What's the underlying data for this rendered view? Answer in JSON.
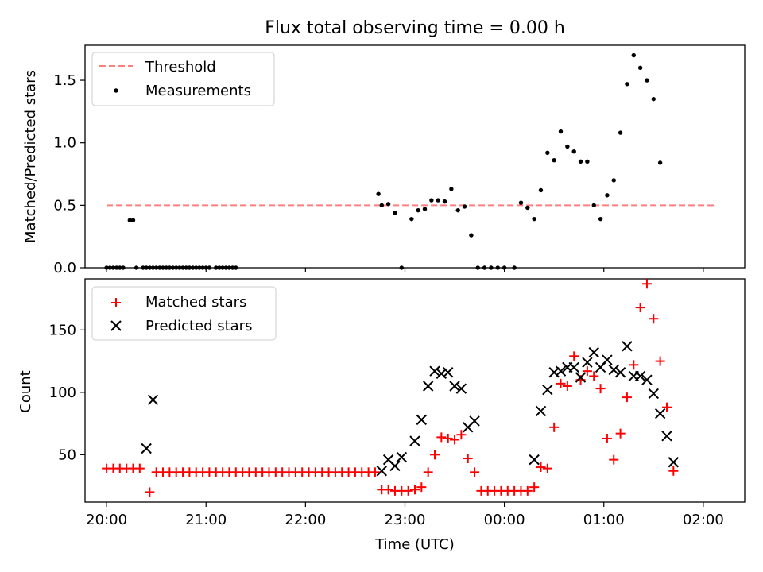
{
  "chart_data": [
    {
      "type": "scatter",
      "title": "Flux total observing time = 0.00 h",
      "xlabel": "",
      "ylabel": "Matched/Predicted stars",
      "ylim": [
        0,
        1.78
      ],
      "yticks": [
        0.0,
        0.5,
        1.0,
        1.5
      ],
      "ytick_labels": [
        "0.0",
        "0.5",
        "1.0",
        "1.5"
      ],
      "xlim_hours_utc": [
        "19:47",
        "02:25"
      ],
      "xticks": [
        "20:00",
        "21:00",
        "22:00",
        "23:00",
        "00:00",
        "01:00",
        "02:00"
      ],
      "x_tick_labels_visible": false,
      "legend": {
        "position": "top-left",
        "entries": [
          "Threshold",
          "Measurements"
        ]
      },
      "threshold": {
        "name": "Threshold",
        "value": 0.5,
        "x_start": "20:00",
        "x_end": "02:08",
        "color": "#ff7f7f",
        "style": "dashed"
      },
      "series": [
        {
          "name": "Measurements",
          "color": "#000000",
          "marker": "dot",
          "points": [
            [
              "20:00",
              0
            ],
            [
              "20:02",
              0
            ],
            [
              "20:04",
              0
            ],
            [
              "20:06",
              0
            ],
            [
              "20:08",
              0
            ],
            [
              "20:10",
              0
            ],
            [
              "20:14",
              0.38
            ],
            [
              "20:16",
              0.38
            ],
            [
              "20:18",
              0
            ],
            [
              "20:22",
              0
            ],
            [
              "20:24",
              0
            ],
            [
              "20:26",
              0
            ],
            [
              "20:28",
              0
            ],
            [
              "20:30",
              0
            ],
            [
              "20:32",
              0
            ],
            [
              "20:34",
              0
            ],
            [
              "20:36",
              0
            ],
            [
              "20:38",
              0
            ],
            [
              "20:40",
              0
            ],
            [
              "20:42",
              0
            ],
            [
              "20:44",
              0
            ],
            [
              "20:46",
              0
            ],
            [
              "20:48",
              0
            ],
            [
              "20:50",
              0
            ],
            [
              "20:52",
              0
            ],
            [
              "20:54",
              0
            ],
            [
              "20:56",
              0
            ],
            [
              "20:58",
              0
            ],
            [
              "21:00",
              0
            ],
            [
              "21:02",
              0
            ],
            [
              "21:06",
              0
            ],
            [
              "21:08",
              0
            ],
            [
              "21:10",
              0
            ],
            [
              "21:12",
              0
            ],
            [
              "21:14",
              0
            ],
            [
              "21:16",
              0
            ],
            [
              "21:18",
              0
            ],
            [
              "22:44",
              0.59
            ],
            [
              "22:46",
              0.5
            ],
            [
              "22:50",
              0.51
            ],
            [
              "22:54",
              0.44
            ],
            [
              "22:58",
              0
            ],
            [
              "23:04",
              0.39
            ],
            [
              "23:08",
              0.46
            ],
            [
              "23:12",
              0.47
            ],
            [
              "23:16",
              0.54
            ],
            [
              "23:20",
              0.54
            ],
            [
              "23:24",
              0.53
            ],
            [
              "23:28",
              0.63
            ],
            [
              "23:32",
              0.46
            ],
            [
              "23:36",
              0.49
            ],
            [
              "23:40",
              0.26
            ],
            [
              "23:44",
              0
            ],
            [
              "23:48",
              0
            ],
            [
              "23:52",
              0
            ],
            [
              "23:56",
              0
            ],
            [
              "00:00",
              0
            ],
            [
              "00:06",
              0
            ],
            [
              "00:10",
              0.52
            ],
            [
              "00:14",
              0.48
            ],
            [
              "00:18",
              0.39
            ],
            [
              "00:22",
              0.62
            ],
            [
              "00:26",
              0.92
            ],
            [
              "00:30",
              0.86
            ],
            [
              "00:34",
              1.09
            ],
            [
              "00:38",
              0.97
            ],
            [
              "00:42",
              0.93
            ],
            [
              "00:46",
              0.85
            ],
            [
              "00:50",
              0.85
            ],
            [
              "00:54",
              0.5
            ],
            [
              "00:58",
              0.39
            ],
            [
              "01:02",
              0.58
            ],
            [
              "01:06",
              0.7
            ],
            [
              "01:10",
              1.08
            ],
            [
              "01:14",
              1.47
            ],
            [
              "01:18",
              1.7
            ],
            [
              "01:22",
              1.6
            ],
            [
              "01:26",
              1.5
            ],
            [
              "01:30",
              1.35
            ],
            [
              "01:34",
              0.84
            ]
          ]
        }
      ]
    },
    {
      "type": "scatter",
      "title": "",
      "xlabel": "Time (UTC)",
      "ylabel": "Count",
      "ylim": [
        12,
        191
      ],
      "yticks": [
        50,
        100,
        150
      ],
      "ytick_labels": [
        "50",
        "100",
        "150"
      ],
      "xlim_hours_utc": [
        "19:47",
        "02:25"
      ],
      "xticks": [
        "20:00",
        "21:00",
        "22:00",
        "23:00",
        "00:00",
        "01:00",
        "02:00"
      ],
      "legend": {
        "position": "top-left",
        "entries": [
          "Matched stars",
          "Predicted stars"
        ]
      },
      "series": [
        {
          "name": "Matched stars",
          "color": "#ff0000",
          "marker": "plus",
          "points": [
            [
              "20:00",
              39
            ],
            [
              "20:04",
              39
            ],
            [
              "20:08",
              39
            ],
            [
              "20:12",
              39
            ],
            [
              "20:16",
              39
            ],
            [
              "20:20",
              39
            ],
            [
              "20:26",
              20
            ],
            [
              "20:30",
              36
            ],
            [
              "20:34",
              36
            ],
            [
              "20:38",
              36
            ],
            [
              "20:42",
              36
            ],
            [
              "20:46",
              36
            ],
            [
              "20:50",
              36
            ],
            [
              "20:54",
              36
            ],
            [
              "20:58",
              36
            ],
            [
              "21:02",
              36
            ],
            [
              "21:06",
              36
            ],
            [
              "21:10",
              36
            ],
            [
              "21:14",
              36
            ],
            [
              "21:18",
              36
            ],
            [
              "21:22",
              36
            ],
            [
              "21:26",
              36
            ],
            [
              "21:30",
              36
            ],
            [
              "21:34",
              36
            ],
            [
              "21:38",
              36
            ],
            [
              "21:42",
              36
            ],
            [
              "21:46",
              36
            ],
            [
              "21:50",
              36
            ],
            [
              "21:54",
              36
            ],
            [
              "21:58",
              36
            ],
            [
              "22:02",
              36
            ],
            [
              "22:06",
              36
            ],
            [
              "22:10",
              36
            ],
            [
              "22:14",
              36
            ],
            [
              "22:18",
              36
            ],
            [
              "22:22",
              36
            ],
            [
              "22:26",
              36
            ],
            [
              "22:30",
              36
            ],
            [
              "22:34",
              36
            ],
            [
              "22:38",
              36
            ],
            [
              "22:42",
              36
            ],
            [
              "22:46",
              22
            ],
            [
              "22:50",
              22
            ],
            [
              "22:54",
              21
            ],
            [
              "22:58",
              21
            ],
            [
              "23:02",
              21
            ],
            [
              "23:06",
              22
            ],
            [
              "23:10",
              24
            ],
            [
              "23:14",
              36
            ],
            [
              "23:18",
              50
            ],
            [
              "23:22",
              64
            ],
            [
              "23:26",
              63
            ],
            [
              "23:30",
              62
            ],
            [
              "23:34",
              66
            ],
            [
              "23:38",
              47
            ],
            [
              "23:42",
              36
            ],
            [
              "23:46",
              21
            ],
            [
              "23:50",
              21
            ],
            [
              "23:54",
              21
            ],
            [
              "23:58",
              21
            ],
            [
              "00:02",
              21
            ],
            [
              "00:06",
              21
            ],
            [
              "00:10",
              21
            ],
            [
              "00:14",
              21
            ],
            [
              "00:18",
              24
            ],
            [
              "00:22",
              40
            ],
            [
              "00:26",
              39
            ],
            [
              "00:30",
              72
            ],
            [
              "00:34",
              107
            ],
            [
              "00:38",
              105
            ],
            [
              "00:42",
              129
            ],
            [
              "00:46",
              110
            ],
            [
              "00:50",
              117
            ],
            [
              "00:54",
              113
            ],
            [
              "00:58",
              103
            ],
            [
              "01:02",
              63
            ],
            [
              "01:06",
              46
            ],
            [
              "01:10",
              67
            ],
            [
              "01:14",
              96
            ],
            [
              "01:18",
              122
            ],
            [
              "01:22",
              168
            ],
            [
              "01:26",
              187
            ],
            [
              "01:30",
              159
            ],
            [
              "01:34",
              125
            ],
            [
              "01:38",
              88
            ],
            [
              "01:42",
              37
            ]
          ]
        },
        {
          "name": "Predicted stars",
          "color": "#000000",
          "marker": "x",
          "points": [
            [
              "20:24",
              55
            ],
            [
              "20:28",
              94
            ],
            [
              "22:46",
              37
            ],
            [
              "22:50",
              46
            ],
            [
              "22:54",
              41
            ],
            [
              "22:58",
              48
            ],
            [
              "23:06",
              61
            ],
            [
              "23:10",
              78
            ],
            [
              "23:14",
              105
            ],
            [
              "23:18",
              117
            ],
            [
              "23:22",
              115
            ],
            [
              "23:26",
              116
            ],
            [
              "23:30",
              105
            ],
            [
              "23:34",
              103
            ],
            [
              "23:38",
              72
            ],
            [
              "23:42",
              77
            ],
            [
              "00:18",
              46
            ],
            [
              "00:22",
              85
            ],
            [
              "00:26",
              102
            ],
            [
              "00:30",
              116
            ],
            [
              "00:34",
              117
            ],
            [
              "00:38",
              120
            ],
            [
              "00:42",
              120
            ],
            [
              "00:46",
              112
            ],
            [
              "00:50",
              124
            ],
            [
              "00:54",
              132
            ],
            [
              "00:58",
              120
            ],
            [
              "01:02",
              126
            ],
            [
              "01:06",
              118
            ],
            [
              "01:10",
              116
            ],
            [
              "01:14",
              137
            ],
            [
              "01:18",
              113
            ],
            [
              "01:22",
              113
            ],
            [
              "01:26",
              110
            ],
            [
              "01:30",
              99
            ],
            [
              "01:34",
              83
            ],
            [
              "01:38",
              65
            ],
            [
              "01:42",
              44
            ]
          ]
        }
      ]
    }
  ]
}
